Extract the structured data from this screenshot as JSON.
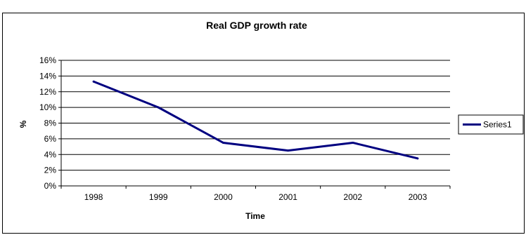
{
  "caption_fragment": "",
  "chart_data": {
    "type": "line",
    "title": "Real GDP growth rate",
    "xlabel": "Time",
    "ylabel": "%",
    "categories": [
      "1998",
      "1999",
      "2000",
      "2001",
      "2002",
      "2003"
    ],
    "series": [
      {
        "name": "Series1",
        "values": [
          13.3,
          10.0,
          5.5,
          4.5,
          5.5,
          3.5
        ],
        "color": "#000080"
      }
    ],
    "ylim": [
      0,
      16
    ],
    "yticks": [
      "0%",
      "2%",
      "4%",
      "6%",
      "8%",
      "10%",
      "12%",
      "14%",
      "16%"
    ],
    "grid": "horizontal",
    "legend": "right"
  }
}
